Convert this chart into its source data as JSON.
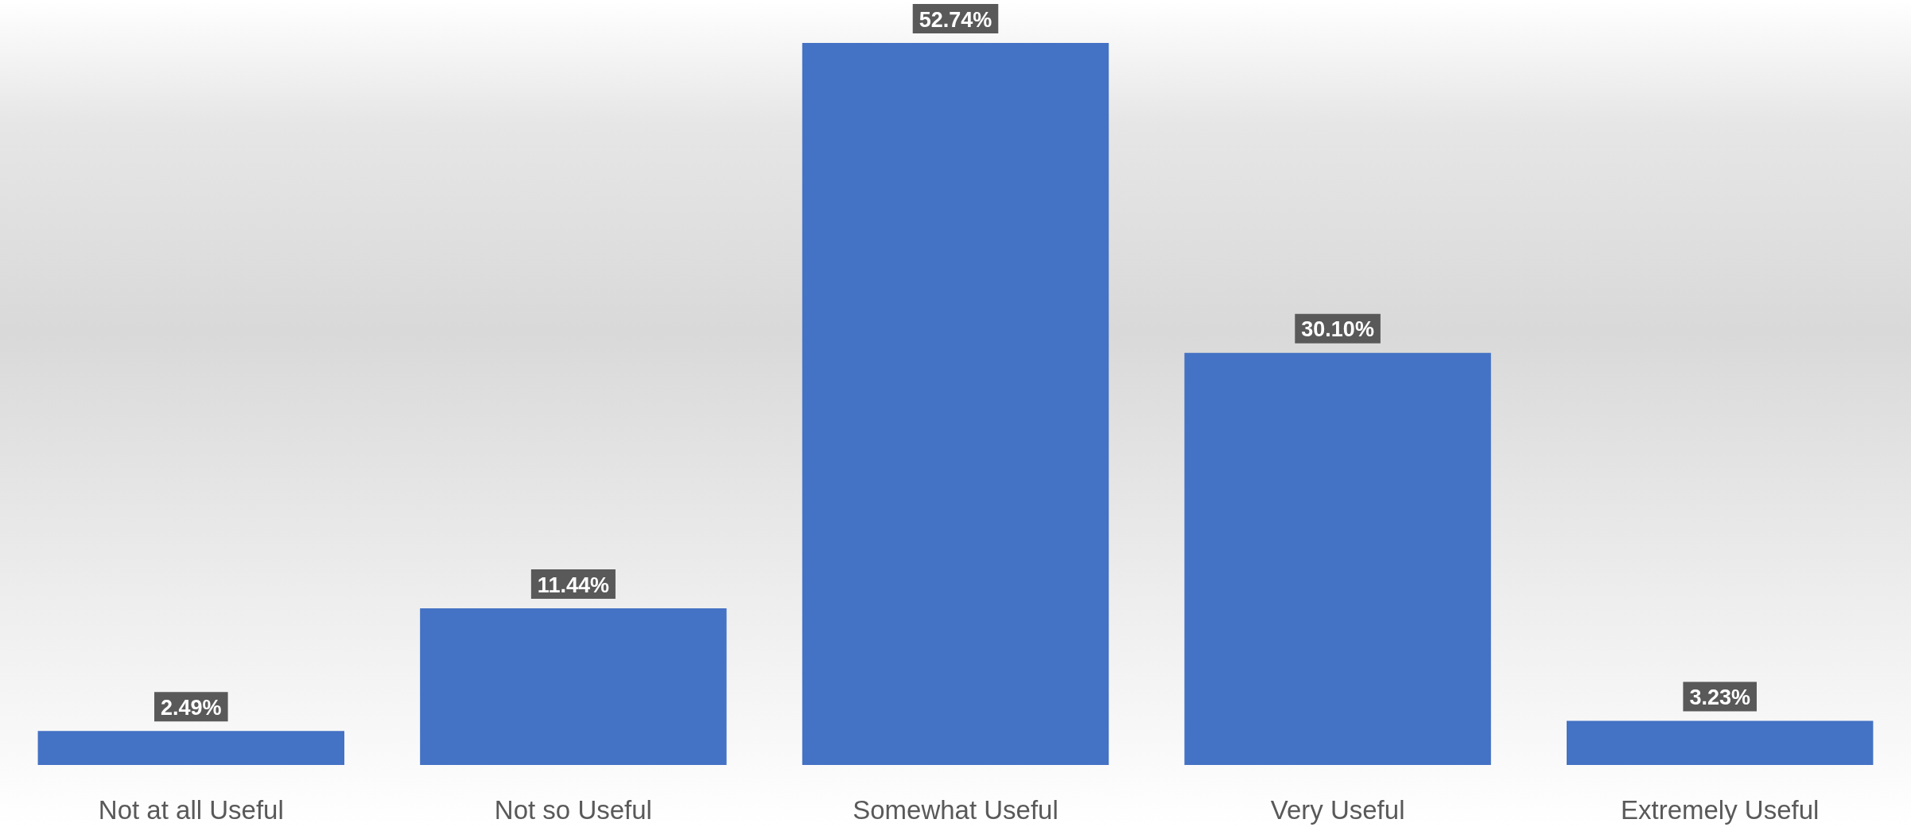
{
  "chart_data": {
    "type": "bar",
    "categories": [
      "Not at all Useful",
      "Not so Useful",
      "Somewhat Useful",
      "Very Useful",
      "Extremely Useful"
    ],
    "values": [
      2.49,
      11.44,
      52.74,
      30.1,
      3.23
    ],
    "value_labels": [
      "2.49%",
      "11.44%",
      "52.74%",
      "30.10%",
      "3.23%"
    ],
    "color": "#4472c4"
  }
}
